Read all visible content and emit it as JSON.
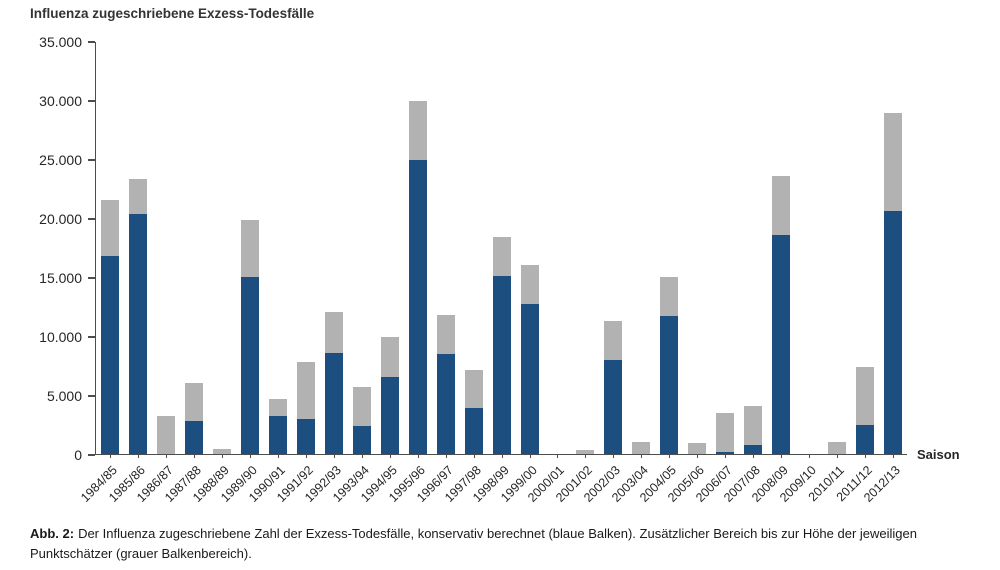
{
  "chart_data": {
    "type": "bar",
    "stacked": true,
    "title": "Influenza zugeschriebene Exzess-Todesfälle",
    "xlabel": "Saison",
    "ylabel": "",
    "ylim": [
      0,
      35000
    ],
    "ytick_step": 5000,
    "ytick_labels": [
      "0",
      "5.000",
      "10.000",
      "15.000",
      "20.000",
      "25.000",
      "30.000",
      "35.000"
    ],
    "grid": false,
    "legend": "none",
    "colors": {
      "bar_blue": "#1c4e80",
      "bar_gray": "#b2b2b2",
      "axis": "#4d4d4d",
      "text": "#262626"
    },
    "categories": [
      "1984/85",
      "1985/86",
      "1986/87",
      "1987/88",
      "1988/89",
      "1989/90",
      "1990/91",
      "1991/92",
      "1992/93",
      "1993/94",
      "1994/95",
      "1995/96",
      "1996/97",
      "1997/98",
      "1998/99",
      "1999/00",
      "2000/01",
      "2001/02",
      "2002/03",
      "2003/04",
      "2004/05",
      "2005/06",
      "2006/07",
      "2007/08",
      "2008/09",
      "2009/10",
      "2010/11",
      "2011/12",
      "2012/13"
    ],
    "series": [
      {
        "name": "Konservativ berechnete Exzess-Todesfälle (blaue Balken)",
        "role": "blue_lower_segment",
        "values": [
          16800,
          20300,
          0,
          2800,
          0,
          15000,
          3200,
          3000,
          8600,
          2400,
          6500,
          24900,
          8500,
          3900,
          15100,
          12700,
          0,
          0,
          8000,
          0,
          11700,
          0,
          200,
          800,
          18600,
          0,
          0,
          2500,
          20600
        ]
      },
      {
        "name": "Zusätzlicher Bereich bis zur Höhe der Punktschätzer (grauer Balkenbereich)",
        "role": "gray_upper_segment",
        "values": [
          4700,
          3000,
          3200,
          3200,
          400,
          4800,
          1500,
          4800,
          3400,
          3300,
          3400,
          5000,
          3300,
          3200,
          3300,
          3300,
          0,
          300,
          3300,
          1000,
          3300,
          900,
          3300,
          3300,
          5000,
          0,
          1000,
          4900,
          8300
        ]
      }
    ],
    "point_estimate_totals": [
      21500,
      23300,
      3200,
      6000,
      400,
      19800,
      4700,
      7800,
      12000,
      5700,
      9900,
      29900,
      11800,
      7100,
      18400,
      16000,
      0,
      300,
      11300,
      1000,
      15000,
      900,
      3500,
      4100,
      23600,
      0,
      1000,
      7400,
      28900
    ]
  },
  "caption": {
    "label": "Abb. 2:",
    "text": "Der Influenza zugeschriebene Zahl der Exzess-Todesfälle, konservativ berechnet (blaue Balken). Zusätzlicher Bereich bis zur Höhe der jeweiligen Punktschätzer (grauer Balkenbereich)."
  }
}
